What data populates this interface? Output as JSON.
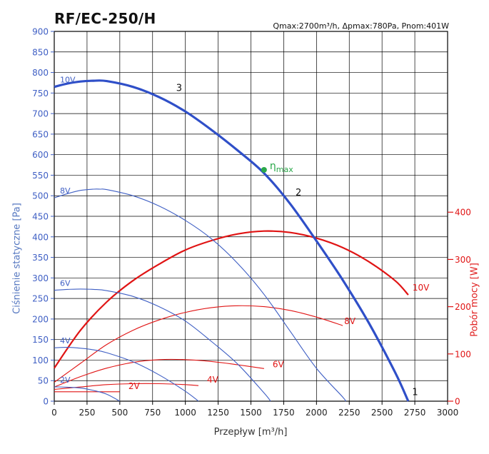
{
  "header": {
    "title": "RF/EC-250/H",
    "spec": "Qmax:2700m³/h, Δpmax:780Pa, Pnom:401W"
  },
  "chart_data": {
    "type": "line",
    "xlabel": "Przepływ [m³/h]",
    "ylabel_left": "Ciśnienie statyczne [Pa]",
    "ylabel_right": "Pobór mocy [W]",
    "xlim": [
      0,
      3000
    ],
    "ylim_left": [
      0,
      900
    ],
    "ylim_right": [
      0,
      400
    ],
    "x_ticks": [
      "0",
      "250",
      "500",
      "750",
      "1000",
      "1250",
      "1500",
      "1750",
      "2000",
      "2250",
      "2500",
      "2750",
      "3000"
    ],
    "y_ticks_left": [
      "0",
      "50",
      "100",
      "150",
      "200",
      "250",
      "300",
      "350",
      "400",
      "450",
      "500",
      "550",
      "600",
      "650",
      "700",
      "750",
      "800",
      "850",
      "900"
    ],
    "y_ticks_right": [
      "0",
      "100",
      "200",
      "300",
      "400"
    ],
    "grid": true,
    "pressure_series": [
      {
        "name": "10V",
        "x": [
          0,
          100,
          200,
          300,
          400,
          600,
          800,
          1000,
          1200,
          1400,
          1600,
          1800,
          2000,
          2200,
          2400,
          2600,
          2700
        ],
        "y": [
          765,
          773,
          778,
          780,
          779,
          765,
          740,
          705,
          660,
          610,
          555,
          480,
          390,
          295,
          190,
          70,
          0
        ]
      },
      {
        "name": "8V",
        "x": [
          0,
          100,
          200,
          300,
          350,
          400,
          600,
          800,
          1000,
          1200,
          1400,
          1600,
          1800,
          2000,
          2200,
          2220
        ],
        "y": [
          495,
          505,
          513,
          516,
          516,
          515,
          500,
          475,
          440,
          395,
          335,
          260,
          170,
          80,
          10,
          0
        ]
      },
      {
        "name": "6V",
        "x": [
          0,
          100,
          200,
          300,
          400,
          600,
          800,
          1000,
          1200,
          1400,
          1600,
          1650
        ],
        "y": [
          270,
          272,
          273,
          272,
          269,
          255,
          230,
          195,
          145,
          90,
          20,
          0
        ]
      },
      {
        "name": "4V",
        "x": [
          0,
          100,
          200,
          300,
          400,
          600,
          800,
          1000,
          1100
        ],
        "y": [
          130,
          131,
          129,
          125,
          118,
          96,
          64,
          24,
          0
        ]
      },
      {
        "name": "2V",
        "x": [
          0,
          100,
          200,
          300,
          400,
          500
        ],
        "y": [
          35,
          34,
          32,
          26,
          17,
          0
        ]
      }
    ],
    "power_series": [
      {
        "name": "10V",
        "x": [
          0,
          200,
          400,
          600,
          800,
          1000,
          1200,
          1400,
          1600,
          1800,
          2000,
          2200,
          2400,
          2600,
          2700
        ],
        "y": [
          70,
          150,
          210,
          255,
          290,
          320,
          340,
          354,
          360,
          357,
          345,
          325,
          295,
          255,
          225
        ]
      },
      {
        "name": "8V",
        "x": [
          0,
          200,
          400,
          600,
          800,
          1000,
          1200,
          1400,
          1600,
          1800,
          2000,
          2200
        ],
        "y": [
          40,
          80,
          120,
          150,
          172,
          188,
          198,
          202,
          200,
          192,
          178,
          160
        ]
      },
      {
        "name": "6V",
        "x": [
          0,
          200,
          400,
          600,
          800,
          1000,
          1200,
          1400,
          1600
        ],
        "y": [
          30,
          52,
          70,
          82,
          88,
          88,
          84,
          77,
          69
        ]
      },
      {
        "name": "4V",
        "x": [
          0,
          200,
          400,
          600,
          800,
          1000,
          1100
        ],
        "y": [
          25,
          30,
          35,
          37,
          37,
          35,
          33
        ]
      },
      {
        "name": "2V",
        "x": [
          0,
          200,
          400,
          500
        ],
        "y": [
          20,
          20,
          20,
          20
        ]
      }
    ],
    "curve_markers": [
      {
        "label": "3",
        "x": 930,
        "y": 755
      },
      {
        "label": "2",
        "x": 1840,
        "y": 500
      },
      {
        "label": "1",
        "x": 2730,
        "y": 15
      }
    ],
    "eta_point": {
      "label": "ηmax",
      "x": 1600,
      "y": 563
    },
    "colors": {
      "pressure": "#3f5fc4",
      "pressure_main": "#2f4fc8",
      "power": "#e01414",
      "eta": "#2aa84a",
      "grid": "#000000"
    }
  }
}
